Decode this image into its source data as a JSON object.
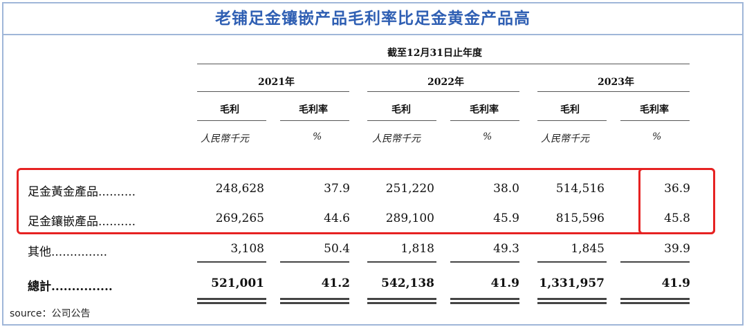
{
  "title": "老铺足金镶嵌产品毛利率比足金黄金产品高",
  "period_header": "截至12月31日止年度",
  "years": [
    "2021年",
    "2022年",
    "2023年"
  ],
  "col_headers": [
    "毛利",
    "毛利率"
  ],
  "units": [
    "人民幣千元",
    "%"
  ],
  "rows": [
    {
      "label": "足金黃金產品",
      "leader": "..........",
      "values": [
        "248,628",
        "37.9",
        "251,220",
        "38.0",
        "514,516",
        "36.9"
      ]
    },
    {
      "label": "足金鑲嵌產品",
      "leader": "..........",
      "values": [
        "269,265",
        "44.6",
        "289,100",
        "45.9",
        "815,596",
        "45.8"
      ]
    },
    {
      "label": "其他",
      "leader": "...............",
      "values": [
        "3,108",
        "50.4",
        "1,818",
        "49.3",
        "1,845",
        "39.9"
      ]
    },
    {
      "label": "總計",
      "leader": "...............",
      "values": [
        "521,001",
        "41.2",
        "542,138",
        "41.9",
        "1,331,957",
        "41.9"
      ]
    }
  ],
  "source": "source：公司公告",
  "highlight_color": "#e62222",
  "title_color": "#2f5fb3"
}
